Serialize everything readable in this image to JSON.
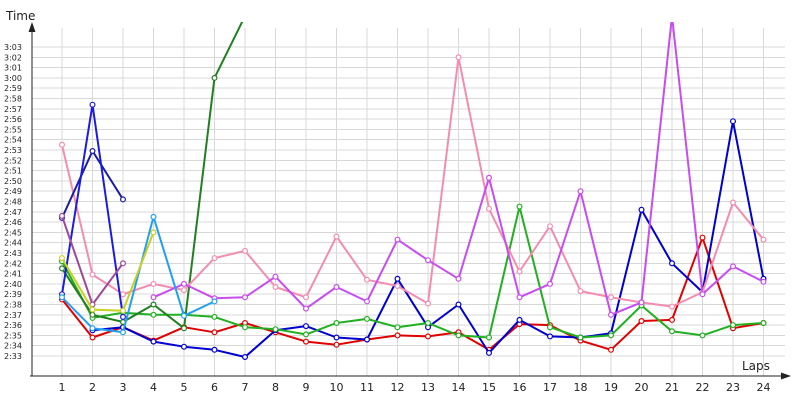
{
  "chart_data": {
    "type": "line",
    "title": "",
    "ylabel": "Time",
    "xlabel": "Laps",
    "x_ticks": [
      1,
      2,
      3,
      4,
      5,
      6,
      7,
      8,
      9,
      10,
      11,
      12,
      13,
      14,
      15,
      16,
      17,
      18,
      19,
      20,
      21,
      22,
      23,
      24
    ],
    "y_ticks_seconds": [
      153,
      154,
      155,
      156,
      157,
      158,
      159,
      160,
      161,
      162,
      163,
      164,
      165,
      166,
      167,
      168,
      169,
      170,
      171,
      172,
      173,
      174,
      175,
      176,
      177,
      178,
      179,
      180,
      181,
      182,
      183
    ],
    "y_tick_labels": [
      "2:33",
      "2:34",
      "2:35",
      "2:36",
      "2:37",
      "2:38",
      "2:39",
      "2:40",
      "2:41",
      "2:42",
      "2:43",
      "2:44",
      "2:45",
      "2:46",
      "2:47",
      "2:48",
      "2:49",
      "2:50",
      "2:51",
      "2:52",
      "2:53",
      "2:54",
      "2:55",
      "2:56",
      "2:57",
      "2:58",
      "2:59",
      "3:00",
      "3:01",
      "3:02",
      "3:03"
    ],
    "ylim_seconds": [
      151,
      186
    ],
    "xlim": [
      0,
      24
    ],
    "y_unit": "seconds (lap time shown as m:ss)",
    "grid": true,
    "legend": "none",
    "series": [
      {
        "color": "#e00000",
        "points": [
          [
            1,
            158.5
          ],
          [
            2,
            154.8
          ],
          [
            3,
            155.8
          ],
          [
            4,
            154.5
          ],
          [
            5,
            155.8
          ],
          [
            6,
            155.3
          ],
          [
            7,
            156.2
          ],
          [
            8,
            155.3
          ],
          [
            9,
            154.4
          ],
          [
            10,
            154.1
          ],
          [
            11,
            154.6
          ],
          [
            12,
            155.0
          ],
          [
            13,
            154.9
          ],
          [
            14,
            155.3
          ],
          [
            15,
            153.6
          ],
          [
            16,
            156.1
          ],
          [
            17,
            156.0
          ],
          [
            18,
            154.5
          ],
          [
            19,
            153.6
          ],
          [
            20,
            156.4
          ],
          [
            21,
            156.5
          ],
          [
            22,
            164.5
          ],
          [
            23,
            155.7
          ],
          [
            24,
            156.2
          ]
        ]
      },
      {
        "color": "#0000d0",
        "points": [
          [
            2,
            155.5
          ],
          [
            3,
            155.8
          ],
          [
            4,
            154.4
          ],
          [
            5,
            153.9
          ],
          [
            6,
            153.6
          ],
          [
            7,
            152.9
          ],
          [
            8,
            155.5
          ],
          [
            9,
            155.9
          ],
          [
            10,
            154.8
          ],
          [
            11,
            154.6
          ],
          [
            12,
            160.5
          ],
          [
            13,
            155.8
          ],
          [
            14,
            158.0
          ],
          [
            15,
            153.3
          ],
          [
            16,
            156.5
          ],
          [
            17,
            154.9
          ],
          [
            18,
            154.8
          ],
          [
            19,
            155.2
          ],
          [
            20,
            167.2
          ],
          [
            21,
            162.0
          ],
          [
            22,
            159.2
          ],
          [
            23,
            175.8
          ],
          [
            24,
            160.5
          ]
        ]
      },
      {
        "color": "#20b020",
        "points": [
          [
            1,
            162.2
          ],
          [
            2,
            156.7
          ],
          [
            3,
            157.2
          ],
          [
            4,
            157.0
          ],
          [
            5,
            157.0
          ],
          [
            6,
            156.8
          ],
          [
            7,
            155.8
          ],
          [
            8,
            155.6
          ],
          [
            9,
            155.1
          ],
          [
            10,
            156.2
          ],
          [
            11,
            156.6
          ],
          [
            12,
            155.8
          ],
          [
            13,
            156.2
          ],
          [
            14,
            155.0
          ],
          [
            15,
            154.8
          ],
          [
            16,
            167.5
          ],
          [
            17,
            155.8
          ],
          [
            18,
            154.8
          ],
          [
            19,
            155.0
          ],
          [
            20,
            157.9
          ],
          [
            21,
            155.4
          ],
          [
            22,
            155.0
          ],
          [
            23,
            156.0
          ],
          [
            24,
            156.2
          ]
        ]
      },
      {
        "color": "#208020",
        "points": [
          [
            1,
            161.5
          ],
          [
            2,
            157.0
          ],
          [
            3,
            156.3
          ],
          [
            4,
            158.0
          ],
          [
            5,
            155.7
          ],
          [
            6,
            180.0
          ],
          [
            7,
            186.0
          ]
        ]
      },
      {
        "color": "#f48cb0",
        "points": [
          [
            1,
            173.5
          ],
          [
            2,
            160.9
          ],
          [
            3,
            159.0
          ],
          [
            4,
            160.0
          ],
          [
            5,
            159.4
          ],
          [
            6,
            162.5
          ],
          [
            7,
            163.2
          ],
          [
            8,
            159.7
          ],
          [
            9,
            158.7
          ],
          [
            10,
            164.6
          ],
          [
            11,
            160.4
          ],
          [
            12,
            159.8
          ],
          [
            13,
            158.1
          ],
          [
            14,
            182.0
          ],
          [
            15,
            167.3
          ],
          [
            16,
            161.2
          ],
          [
            17,
            165.6
          ],
          [
            18,
            159.3
          ],
          [
            19,
            158.7
          ],
          [
            20,
            158.2
          ],
          [
            21,
            157.8
          ],
          [
            22,
            159.2
          ],
          [
            23,
            167.9
          ],
          [
            24,
            164.3
          ]
        ]
      },
      {
        "color": "#c84cf0",
        "points": [
          [
            4,
            158.7
          ],
          [
            5,
            160.0
          ],
          [
            6,
            158.6
          ],
          [
            7,
            158.7
          ],
          [
            8,
            160.7
          ],
          [
            9,
            157.6
          ],
          [
            10,
            159.7
          ],
          [
            11,
            158.3
          ],
          [
            12,
            164.3
          ],
          [
            13,
            162.3
          ],
          [
            14,
            160.5
          ],
          [
            15,
            170.3
          ],
          [
            16,
            158.7
          ],
          [
            17,
            160.0
          ],
          [
            18,
            169.0
          ],
          [
            19,
            157.0
          ],
          [
            20,
            158.2
          ],
          [
            21,
            186.0
          ],
          [
            22,
            159.0
          ],
          [
            23,
            161.7
          ],
          [
            24,
            160.2
          ]
        ]
      },
      {
        "color": "#1a1aa8",
        "points": [
          [
            1,
            166.4
          ],
          [
            2,
            172.9
          ],
          [
            3,
            168.2
          ]
        ]
      },
      {
        "color": "#1c1ce0",
        "points": [
          [
            1,
            159.0
          ],
          [
            2,
            177.4
          ],
          [
            3,
            156.8
          ]
        ]
      },
      {
        "color": "#a04898",
        "points": [
          [
            1,
            166.6
          ],
          [
            2,
            158.0
          ],
          [
            3,
            162.0
          ]
        ]
      },
      {
        "color": "#20a0f0",
        "points": [
          [
            1,
            158.7
          ],
          [
            2,
            155.7
          ],
          [
            3,
            155.3
          ],
          [
            4,
            166.5
          ],
          [
            5,
            156.9
          ],
          [
            6,
            158.3
          ]
        ]
      },
      {
        "color": "#c8d020",
        "points": [
          [
            1,
            162.5
          ],
          [
            2,
            157.5
          ],
          [
            3,
            157.4
          ],
          [
            4,
            165.0
          ]
        ]
      }
    ]
  }
}
